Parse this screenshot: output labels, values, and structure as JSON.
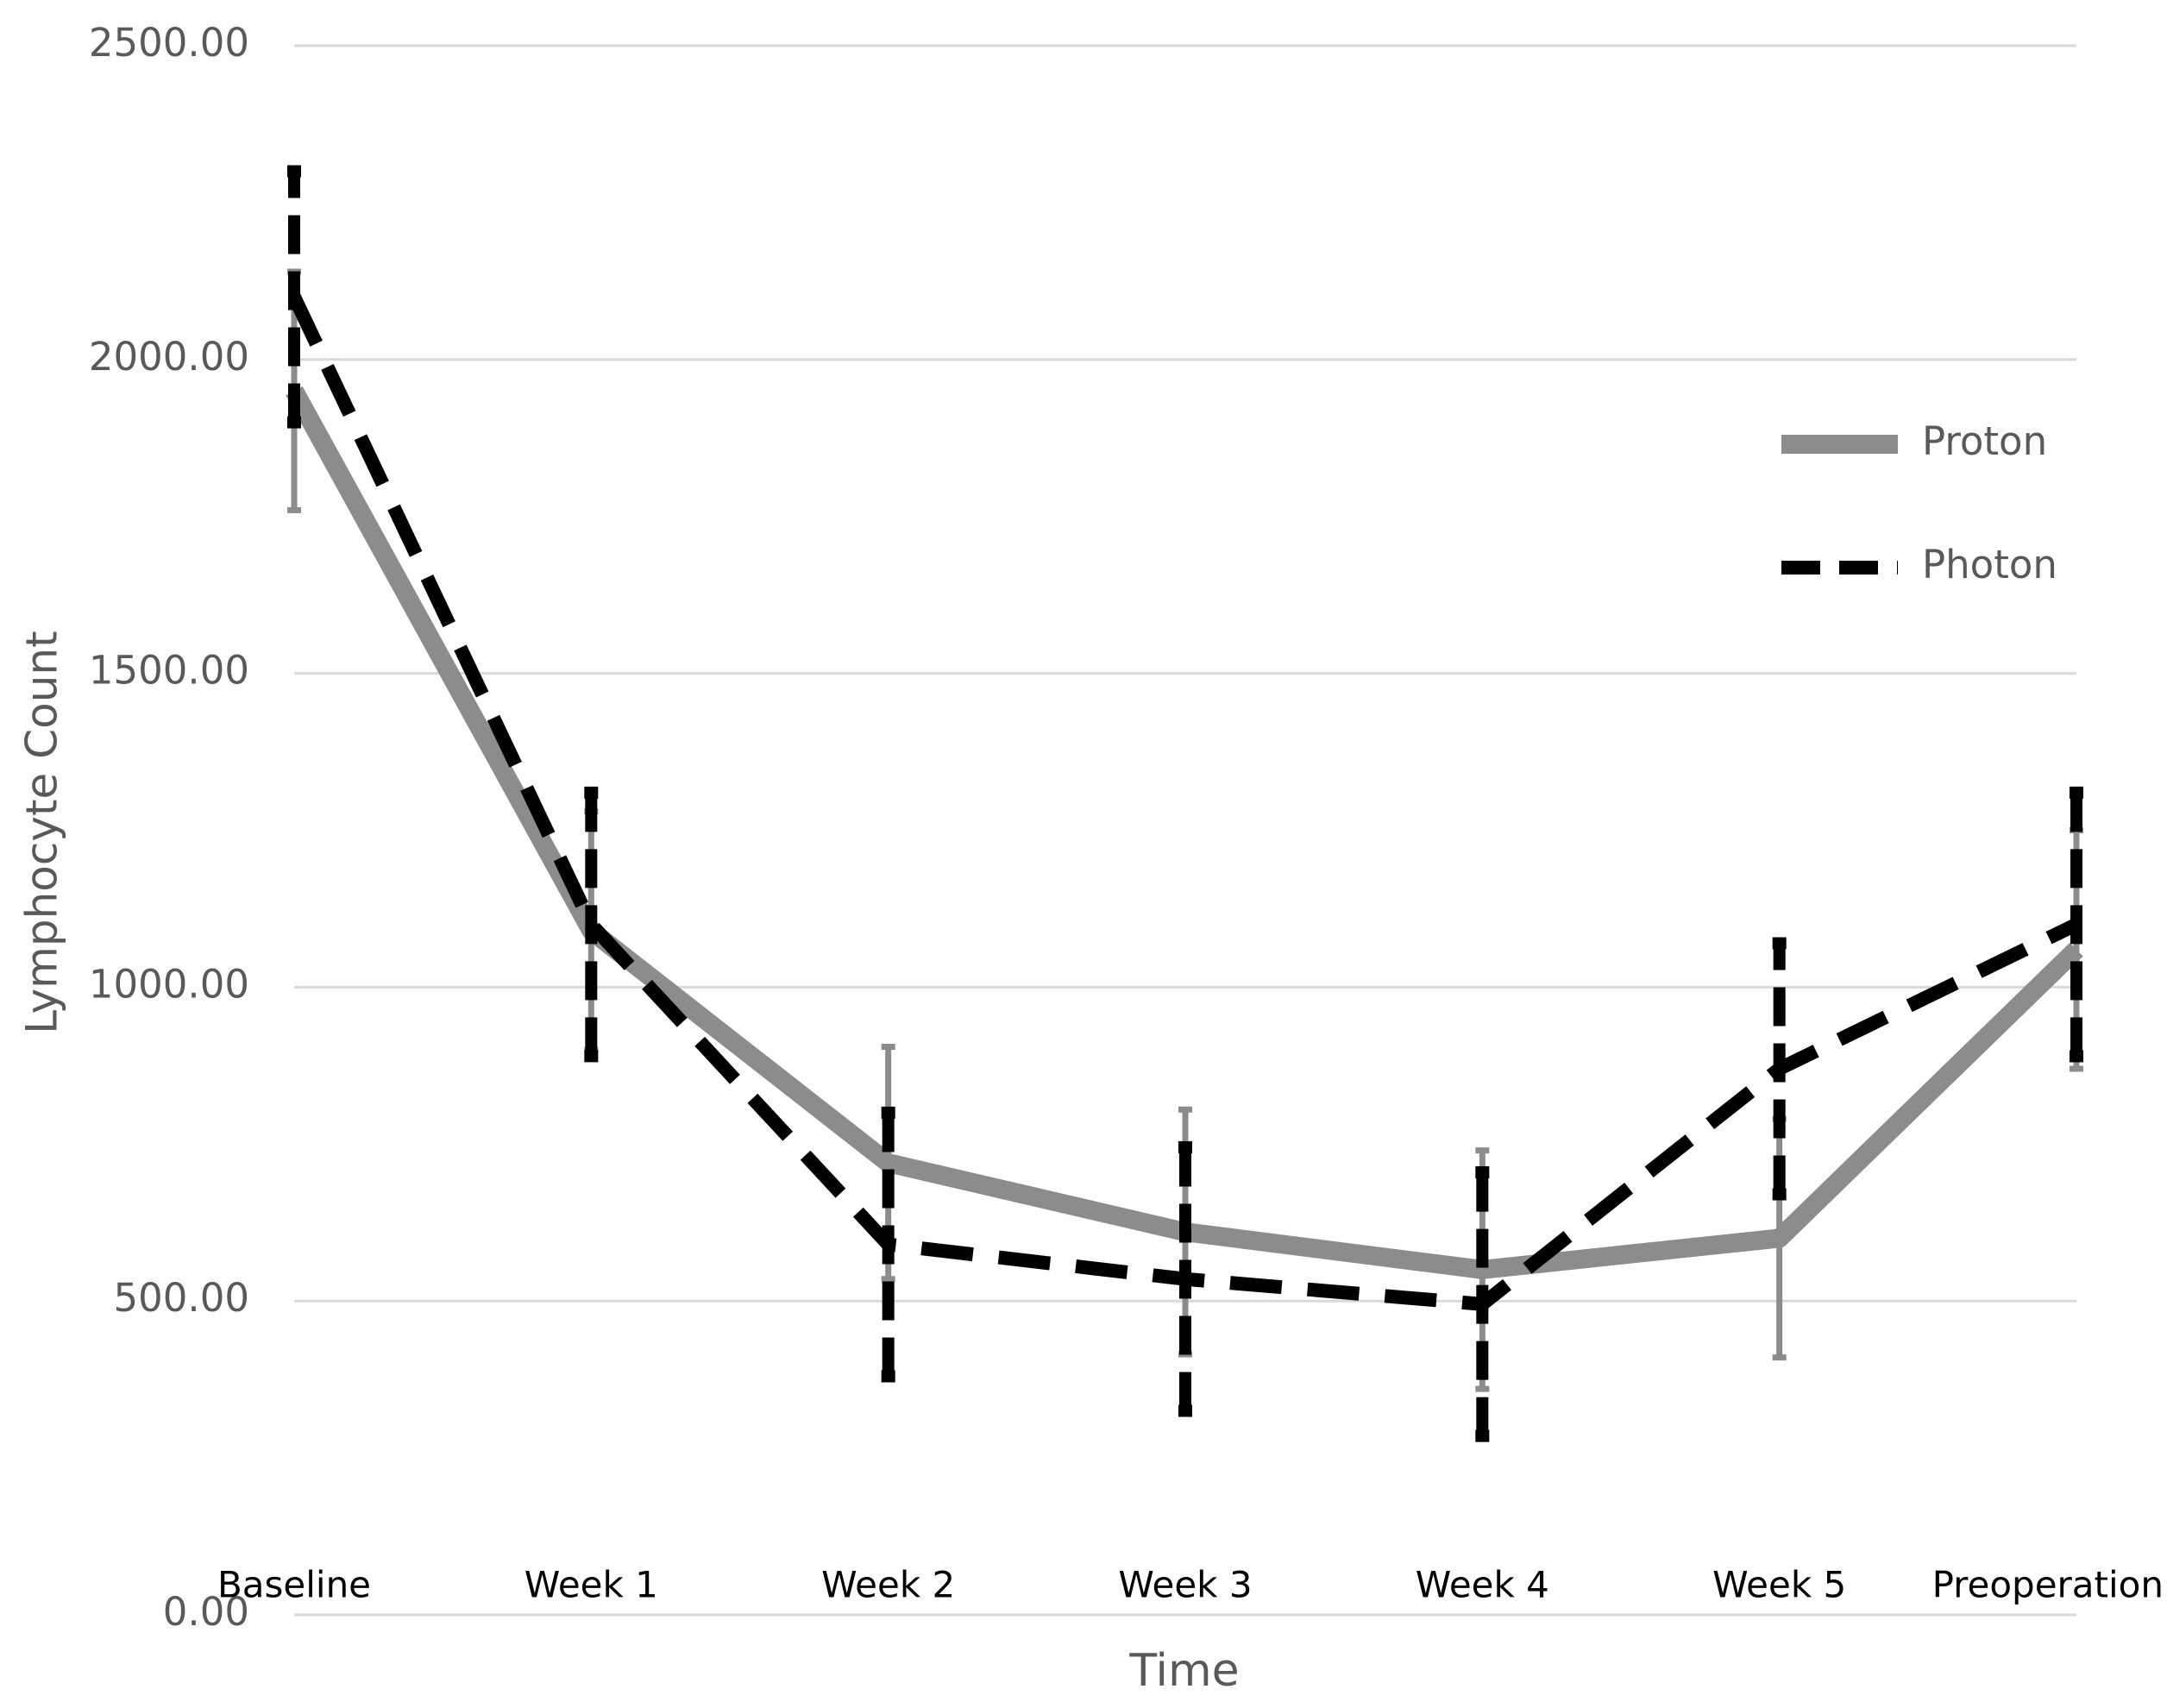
{
  "chart_data": {
    "type": "line",
    "x_label": "Time",
    "y_label": "Lymphocyte Count",
    "categories": [
      "Baseline",
      "Week 1",
      "Week 2",
      "Week 3",
      "Week 4",
      "Week 5",
      "Preoperation"
    ],
    "series": [
      {
        "name": "Proton",
        "color": "#8c8c8c",
        "style": "solid",
        "values": [
          1950,
          1090,
          720,
          610,
          550,
          600,
          1060
        ],
        "error": [
          190,
          190,
          185,
          195,
          190,
          190,
          190
        ]
      },
      {
        "name": "Photon",
        "color": "#000000",
        "style": "dashed",
        "values": [
          2100,
          1100,
          590,
          535,
          495,
          870,
          1100
        ],
        "error": [
          200,
          210,
          210,
          210,
          210,
          200,
          210
        ]
      }
    ],
    "ylim": [
      0,
      2500
    ],
    "yticks": [
      {
        "value": 0,
        "label": "0.00"
      },
      {
        "value": 500,
        "label": "500.00"
      },
      {
        "value": 1000,
        "label": "1000.00"
      },
      {
        "value": 1500,
        "label": "1500.00"
      },
      {
        "value": 2000,
        "label": "2000.00"
      },
      {
        "value": 2500,
        "label": "2500.00"
      }
    ],
    "grid": true,
    "legend": "right"
  }
}
